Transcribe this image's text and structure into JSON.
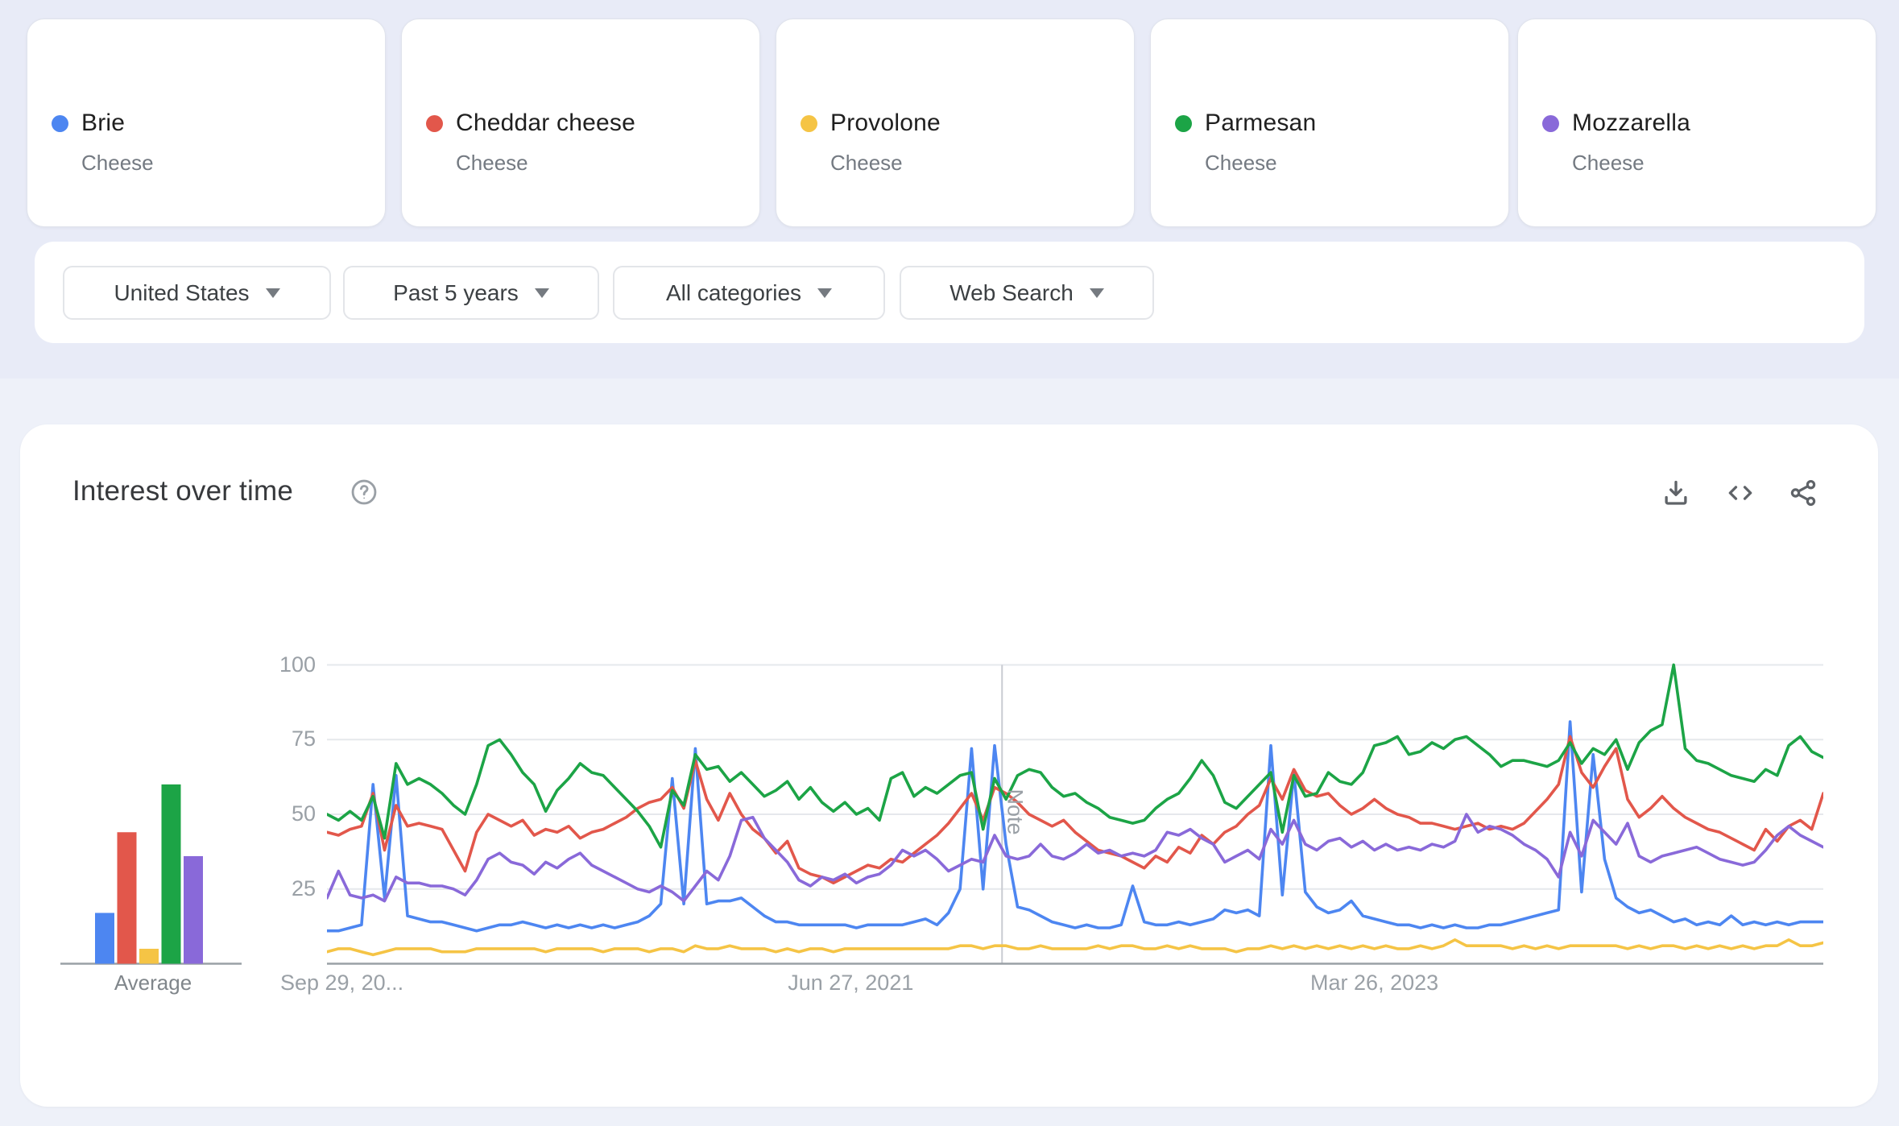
{
  "terms": [
    {
      "label": "Brie",
      "type": "Cheese",
      "color": "#4d86f1"
    },
    {
      "label": "Cheddar cheese",
      "type": "Cheese",
      "color": "#e2574b"
    },
    {
      "label": "Provolone",
      "type": "Cheese",
      "color": "#f5c445"
    },
    {
      "label": "Parmesan",
      "type": "Cheese",
      "color": "#1ca446"
    },
    {
      "label": "Mozzarella",
      "type": "Cheese",
      "color": "#8969d9"
    }
  ],
  "filters": {
    "region": "United States",
    "time": "Past 5 years",
    "category": "All categories",
    "search_type": "Web Search"
  },
  "section": {
    "title": "Interest over time",
    "help_icon": "help-circle-icon",
    "actions": [
      "download-icon",
      "embed-code-icon",
      "share-icon"
    ]
  },
  "chart_data": {
    "type": "line",
    "title": "Interest over time",
    "ylim": [
      0,
      100
    ],
    "yticks": [
      25,
      50,
      75,
      100
    ],
    "grid": "horizontal",
    "weeks_span": 260,
    "x_tick_labels": [
      {
        "label": "Sep 29, 20...",
        "week": 0,
        "align": "left"
      },
      {
        "label": "Jun 27, 2021",
        "week": 91,
        "align": "center"
      },
      {
        "label": "Mar 26, 2023",
        "week": 182,
        "align": "center"
      }
    ],
    "note": {
      "label": "Note",
      "week": 117.3
    },
    "averages": {
      "label": "Average",
      "values": [
        17,
        44,
        5,
        60,
        36
      ]
    },
    "series": [
      {
        "name": "Brie",
        "color": "#4d86f1",
        "values": [
          11,
          11,
          12,
          13,
          60,
          22,
          63,
          16,
          15,
          14,
          14,
          13,
          12,
          11,
          12,
          13,
          13,
          14,
          13,
          12,
          13,
          12,
          13,
          12,
          13,
          12,
          13,
          14,
          16,
          20,
          62,
          20,
          72,
          20,
          21,
          21,
          22,
          19,
          16,
          14,
          14,
          13,
          13,
          13,
          13,
          13,
          12,
          13,
          13,
          13,
          13,
          14,
          15,
          13,
          17,
          25,
          72,
          25,
          73,
          40,
          19,
          18,
          16,
          14,
          13,
          12,
          13,
          12,
          12,
          13,
          26,
          14,
          13,
          13,
          14,
          13,
          14,
          15,
          18,
          17,
          18,
          16,
          73,
          23,
          64,
          24,
          19,
          17,
          18,
          21,
          16,
          15,
          14,
          13,
          13,
          12,
          13,
          12,
          13,
          12,
          12,
          13,
          13,
          14,
          15,
          16,
          17,
          18,
          81,
          24,
          70,
          35,
          22,
          19,
          17,
          18,
          16,
          14,
          15,
          13,
          14,
          13,
          16,
          13,
          14,
          13,
          14,
          13,
          14,
          14,
          14
        ]
      },
      {
        "name": "Cheddar cheese",
        "color": "#e2574b",
        "values": [
          44,
          43,
          45,
          46,
          57,
          38,
          53,
          46,
          47,
          46,
          45,
          38,
          31,
          44,
          50,
          48,
          46,
          48,
          43,
          45,
          44,
          46,
          42,
          44,
          45,
          47,
          49,
          52,
          54,
          55,
          59,
          52,
          68,
          55,
          48,
          57,
          50,
          45,
          42,
          37,
          41,
          32,
          30,
          29,
          27,
          29,
          31,
          33,
          32,
          35,
          34,
          37,
          40,
          43,
          47,
          52,
          57,
          48,
          59,
          57,
          54,
          50,
          48,
          46,
          48,
          44,
          41,
          38,
          37,
          36,
          34,
          32,
          36,
          34,
          39,
          37,
          43,
          40,
          44,
          46,
          50,
          53,
          62,
          55,
          65,
          58,
          56,
          57,
          53,
          50,
          52,
          55,
          52,
          50,
          49,
          47,
          47,
          46,
          45,
          46,
          47,
          45,
          46,
          45,
          47,
          51,
          55,
          60,
          76,
          64,
          59,
          66,
          72,
          55,
          49,
          52,
          56,
          52,
          49,
          47,
          45,
          44,
          42,
          40,
          38,
          45,
          41,
          46,
          48,
          45,
          57
        ]
      },
      {
        "name": "Provolone",
        "color": "#f5c445",
        "values": [
          4,
          5,
          5,
          4,
          3,
          4,
          5,
          5,
          5,
          5,
          4,
          4,
          4,
          5,
          5,
          5,
          5,
          5,
          5,
          4,
          5,
          5,
          5,
          5,
          4,
          5,
          5,
          5,
          4,
          5,
          5,
          4,
          6,
          5,
          5,
          6,
          5,
          5,
          5,
          4,
          5,
          4,
          5,
          5,
          4,
          5,
          5,
          5,
          5,
          5,
          5,
          5,
          5,
          5,
          5,
          6,
          6,
          5,
          6,
          6,
          5,
          5,
          6,
          5,
          5,
          5,
          5,
          6,
          5,
          6,
          6,
          5,
          5,
          6,
          5,
          6,
          5,
          5,
          5,
          4,
          5,
          5,
          6,
          5,
          6,
          5,
          6,
          5,
          6,
          5,
          6,
          5,
          6,
          5,
          5,
          6,
          5,
          6,
          8,
          6,
          6,
          6,
          6,
          5,
          6,
          5,
          6,
          5,
          6,
          6,
          6,
          6,
          6,
          5,
          6,
          5,
          6,
          6,
          5,
          6,
          5,
          6,
          5,
          6,
          5,
          6,
          6,
          8,
          6,
          6,
          7
        ]
      },
      {
        "name": "Parmesan",
        "color": "#1ca446",
        "values": [
          50,
          48,
          51,
          48,
          56,
          42,
          67,
          60,
          62,
          60,
          57,
          53,
          50,
          60,
          73,
          75,
          70,
          64,
          60,
          51,
          58,
          62,
          67,
          64,
          63,
          59,
          55,
          51,
          46,
          39,
          58,
          53,
          70,
          65,
          66,
          61,
          64,
          60,
          56,
          58,
          61,
          55,
          59,
          54,
          51,
          54,
          50,
          52,
          48,
          62,
          64,
          56,
          59,
          57,
          60,
          63,
          64,
          45,
          62,
          55,
          63,
          65,
          64,
          59,
          56,
          57,
          54,
          52,
          49,
          48,
          47,
          48,
          52,
          55,
          57,
          62,
          68,
          63,
          54,
          52,
          56,
          60,
          64,
          44,
          63,
          56,
          57,
          64,
          61,
          60,
          64,
          73,
          74,
          76,
          70,
          71,
          74,
          72,
          75,
          76,
          73,
          70,
          66,
          68,
          68,
          67,
          66,
          68,
          74,
          67,
          72,
          70,
          75,
          65,
          74,
          78,
          80,
          100,
          72,
          68,
          67,
          65,
          63,
          62,
          61,
          65,
          63,
          73,
          76,
          71,
          69
        ]
      },
      {
        "name": "Mozzarella",
        "color": "#8969d9",
        "values": [
          22,
          31,
          23,
          22,
          23,
          21,
          29,
          27,
          27,
          26,
          26,
          25,
          23,
          28,
          35,
          37,
          34,
          33,
          30,
          34,
          32,
          35,
          37,
          33,
          31,
          29,
          27,
          25,
          24,
          26,
          24,
          21,
          26,
          31,
          28,
          36,
          48,
          49,
          42,
          38,
          34,
          28,
          26,
          29,
          28,
          30,
          27,
          29,
          30,
          33,
          38,
          36,
          38,
          35,
          31,
          33,
          35,
          34,
          43,
          36,
          35,
          36,
          40,
          36,
          35,
          37,
          40,
          37,
          38,
          36,
          37,
          36,
          38,
          44,
          43,
          45,
          42,
          40,
          34,
          36,
          38,
          35,
          45,
          40,
          48,
          40,
          38,
          41,
          42,
          39,
          41,
          38,
          40,
          38,
          39,
          38,
          40,
          39,
          41,
          50,
          44,
          46,
          45,
          43,
          40,
          38,
          35,
          29,
          44,
          36,
          48,
          44,
          40,
          47,
          36,
          34,
          36,
          37,
          38,
          39,
          37,
          35,
          34,
          33,
          34,
          38,
          43,
          46,
          43,
          41,
          39
        ]
      }
    ]
  },
  "ui_colors": {
    "grid": "#e6e8ec",
    "baseline": "#9aa0a6",
    "note_line": "#c9ccd2",
    "axis_text": "#9aa0a6",
    "icon": "#5f6368"
  }
}
